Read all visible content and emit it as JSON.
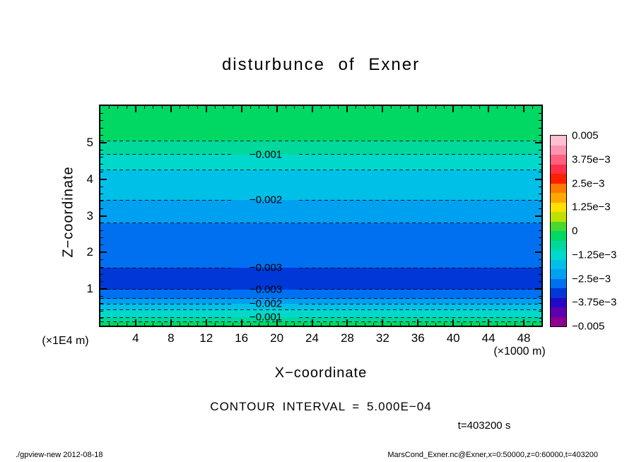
{
  "chart_data": {
    "type": "heatmap",
    "subtype": "filled-contour",
    "title": "disturbunce of Exner",
    "xlabel": "X−coordinate",
    "ylabel": "Z−coordinate",
    "x_unit_label": "(×1000 m)",
    "y_unit_label": "(×1E4 m)",
    "x_max": 50,
    "z_max": 6,
    "x_major_ticks": [
      4,
      8,
      12,
      16,
      20,
      24,
      28,
      32,
      36,
      40,
      44,
      48
    ],
    "x_minor_step": 1,
    "y_major_ticks": [
      1,
      2,
      3,
      4,
      5
    ],
    "y_minor_step": 0.2,
    "contour_interval": 0.0005,
    "contour_interval_text": "CONTOUR INTERVAL = 5.000E−04",
    "time_label": "t=403200 s",
    "grid": false,
    "label_gap": [
      0.3,
      0.45
    ],
    "bands": [
      {
        "z_top": 6.0,
        "z_bottom": 5.05,
        "value_range": [
          -0.0005,
          0
        ],
        "color": "#00d864"
      },
      {
        "z_top": 5.05,
        "z_bottom": 4.67,
        "value_range": [
          -0.001,
          -0.0005
        ],
        "color": "#00d89c"
      },
      {
        "z_top": 4.67,
        "z_bottom": 4.25,
        "value_range": [
          -0.0015,
          -0.001
        ],
        "color": "#00d8cc"
      },
      {
        "z_top": 4.25,
        "z_bottom": 3.43,
        "value_range": [
          -0.002,
          -0.0015
        ],
        "color": "#00c0e8"
      },
      {
        "z_top": 3.43,
        "z_bottom": 2.8,
        "value_range": [
          -0.0025,
          -0.002
        ],
        "color": "#00a0f0"
      },
      {
        "z_top": 2.8,
        "z_bottom": 1.58,
        "value_range": [
          -0.003,
          -0.0025
        ],
        "color": "#0070f0"
      },
      {
        "z_top": 1.58,
        "z_bottom": 0.99,
        "value_range": [
          -0.0035,
          -0.003
        ],
        "color": "#0038d8"
      },
      {
        "z_top": 0.99,
        "z_bottom": 0.74,
        "value_range": [
          -0.003,
          -0.0025
        ],
        "color": "#0070f0"
      },
      {
        "z_top": 0.74,
        "z_bottom": 0.59,
        "value_range": [
          -0.0025,
          -0.002
        ],
        "color": "#00a0f0"
      },
      {
        "z_top": 0.59,
        "z_bottom": 0.44,
        "value_range": [
          -0.002,
          -0.0015
        ],
        "color": "#00c0e8"
      },
      {
        "z_top": 0.44,
        "z_bottom": 0.23,
        "value_range": [
          -0.0015,
          -0.001
        ],
        "color": "#00d8cc"
      },
      {
        "z_top": 0.23,
        "z_bottom": 0.1,
        "value_range": [
          -0.001,
          -0.0005
        ],
        "color": "#00d89c"
      },
      {
        "z_top": 0.1,
        "z_bottom": 0.0,
        "value_range": [
          -0.0005,
          0
        ],
        "color": "#00d864"
      }
    ],
    "contours": [
      {
        "z": 5.05,
        "level": -0.0005,
        "label": null
      },
      {
        "z": 4.67,
        "level": -0.001,
        "label": "−0.001"
      },
      {
        "z": 4.25,
        "level": -0.0015,
        "label": null
      },
      {
        "z": 3.43,
        "level": -0.002,
        "label": "−0.002"
      },
      {
        "z": 2.8,
        "level": -0.0025,
        "label": null
      },
      {
        "z": 1.58,
        "level": -0.003,
        "label": "−0.003"
      },
      {
        "z": 0.99,
        "level": -0.003,
        "label": "−0.003"
      },
      {
        "z": 0.74,
        "level": -0.0025,
        "label": null
      },
      {
        "z": 0.59,
        "level": -0.002,
        "label": "−0.002"
      },
      {
        "z": 0.44,
        "level": -0.0015,
        "label": null
      },
      {
        "z": 0.23,
        "level": -0.001,
        "label": "−0.001"
      },
      {
        "z": 0.1,
        "level": -0.0005,
        "label": null
      }
    ],
    "colorbar": {
      "min": -0.005,
      "max": 0.005,
      "labels": [
        "0.005",
        "3.75e−3",
        "2.5e−3",
        "1.25e−3",
        "0",
        "−1.25e−3",
        "−2.5e−3",
        "−3.75e−3",
        "−0.005"
      ],
      "colors_top_to_bottom": [
        "#ffc0d0",
        "#ff94b0",
        "#ff6080",
        "#ff3048",
        "#ff2000",
        "#ff7800",
        "#ffa800",
        "#ffe000",
        "#c0e000",
        "#48d830",
        "#00d864",
        "#00d89c",
        "#00d8cc",
        "#00c0e8",
        "#00a0f0",
        "#0070f0",
        "#0038d8",
        "#2408c8",
        "#5c00b0",
        "#8c0090"
      ]
    }
  },
  "footer": {
    "left": "./gpview-new  2012-08-18",
    "right": "MarsCond_Exner.nc@Exner,x=0:50000,z=0:60000,t=403200"
  }
}
